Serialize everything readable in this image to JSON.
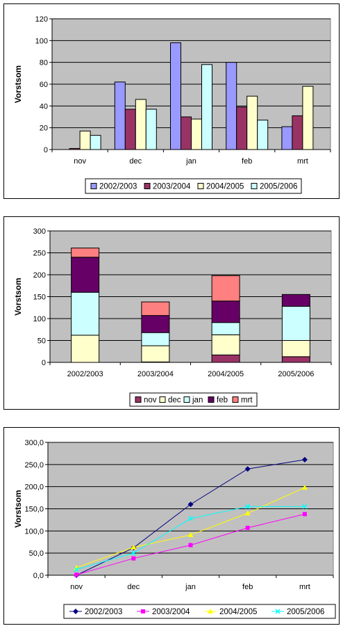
{
  "chart_data": [
    {
      "type": "bar",
      "ylabel": "Vorstsom",
      "xlabel": "",
      "ylim": [
        0,
        120
      ],
      "yticks": [
        "0",
        "20",
        "40",
        "60",
        "80",
        "100",
        "120"
      ],
      "categories": [
        "nov",
        "dec",
        "jan",
        "feb",
        "mrt"
      ],
      "grid": true,
      "legend": "bottom",
      "series": [
        {
          "name": "2002/2003",
          "color": "#9999ff",
          "values": [
            0,
            62,
            98,
            80,
            21
          ]
        },
        {
          "name": "2003/2004",
          "color": "#993366",
          "values": [
            1,
            37,
            30,
            39,
            31
          ]
        },
        {
          "name": "2004/2005",
          "color": "#ffffcc",
          "values": [
            17,
            46,
            28,
            49,
            58
          ]
        },
        {
          "name": "2005/2006",
          "color": "#ccffff",
          "values": [
            13,
            37,
            78,
            27,
            0
          ]
        }
      ]
    },
    {
      "type": "bar",
      "stacked": true,
      "ylabel": "Vorstsom",
      "xlabel": "",
      "ylim": [
        0,
        300
      ],
      "yticks": [
        "0",
        "50",
        "100",
        "150",
        "200",
        "250",
        "300"
      ],
      "categories": [
        "2002/2003",
        "2003/2004",
        "2004/2005",
        "2005/2006"
      ],
      "grid": true,
      "legend": "bottom",
      "series": [
        {
          "name": "nov",
          "color": "#993366",
          "values": [
            0,
            1,
            17,
            13
          ]
        },
        {
          "name": "dec",
          "color": "#ffffcc",
          "values": [
            62,
            37,
            46,
            37
          ]
        },
        {
          "name": "jan",
          "color": "#ccffff",
          "values": [
            98,
            30,
            28,
            78
          ]
        },
        {
          "name": "feb",
          "color": "#660066",
          "values": [
            80,
            39,
            49,
            27
          ]
        },
        {
          "name": "mrt",
          "color": "#ff8080",
          "values": [
            21,
            31,
            58,
            0
          ]
        }
      ]
    },
    {
      "type": "line",
      "ylabel": "Vorstsom",
      "xlabel": "",
      "ylim": [
        0,
        300
      ],
      "yticks": [
        "0,0",
        "50,0",
        "100,0",
        "150,0",
        "200,0",
        "250,0",
        "300,0"
      ],
      "categories": [
        "nov",
        "dec",
        "jan",
        "feb",
        "mrt"
      ],
      "grid": true,
      "legend": "bottom",
      "series": [
        {
          "name": "2002/2003",
          "color": "#000080",
          "marker": "diamond",
          "values": [
            0,
            62,
            160,
            240,
            261
          ]
        },
        {
          "name": "2003/2004",
          "color": "#ff00ff",
          "marker": "square",
          "values": [
            1,
            38,
            68,
            107,
            138
          ]
        },
        {
          "name": "2004/2005",
          "color": "#ffff00",
          "marker": "triangle",
          "values": [
            17,
            63,
            91,
            140,
            198
          ]
        },
        {
          "name": "2005/2006",
          "color": "#00ffff",
          "marker": "x",
          "values": [
            13,
            50,
            128,
            155,
            155
          ]
        }
      ]
    }
  ]
}
